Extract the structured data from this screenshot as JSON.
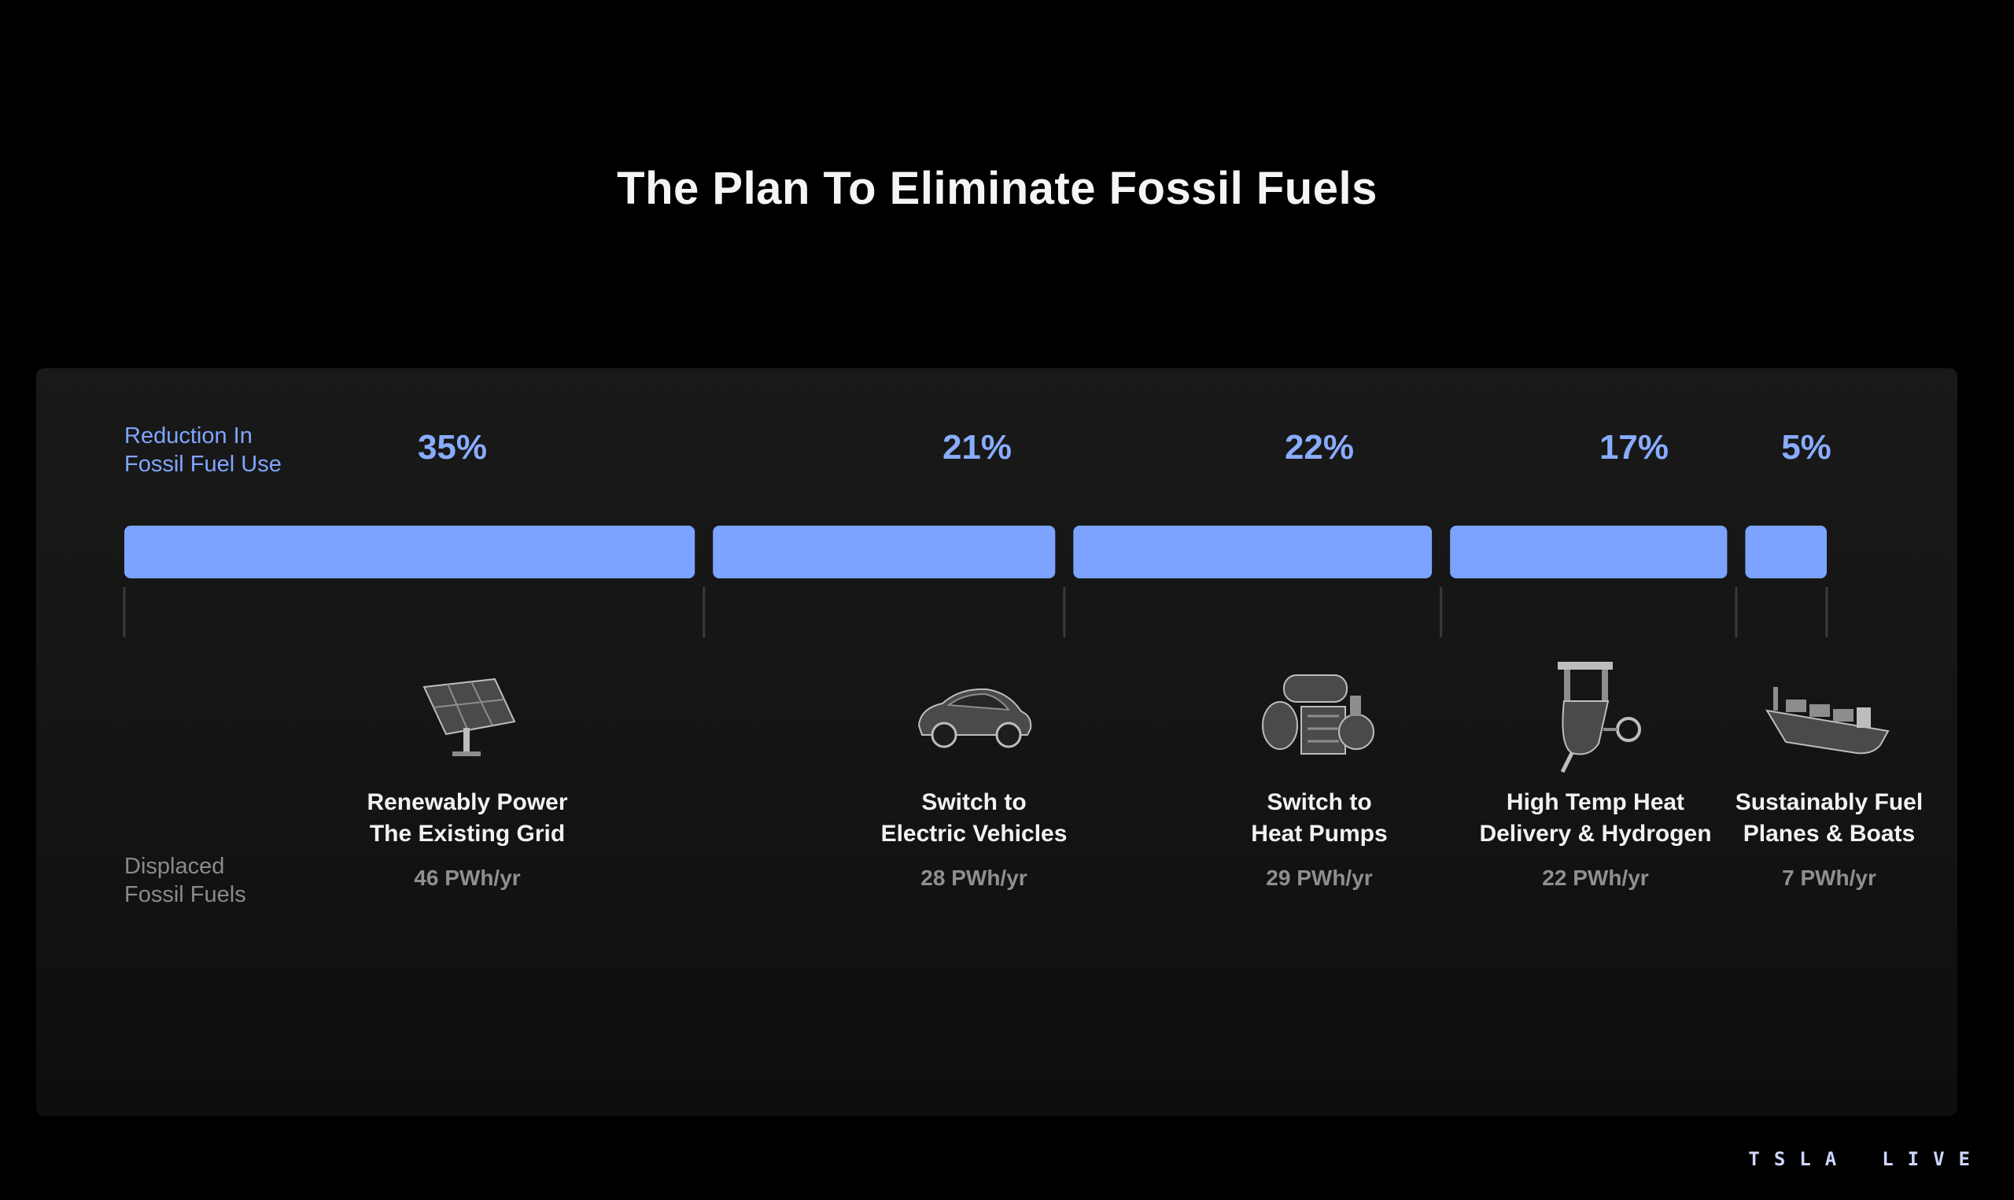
{
  "title": "The Plan To Eliminate Fossil Fuels",
  "labels": {
    "reduction_line1": "Reduction In",
    "reduction_line2": "Fossil Fuel Use",
    "displaced_line1": "Displaced",
    "displaced_line2": "Fossil Fuels"
  },
  "brand": {
    "part1": "TSLA",
    "part2": "LIVE"
  },
  "colors": {
    "bar": "#7ba3ff",
    "percent_text": "#89acff",
    "background": "#000000",
    "panel": "#161616"
  },
  "chart_data": {
    "type": "bar",
    "orientation": "horizontal-stacked",
    "title": "The Plan To Eliminate Fossil Fuels",
    "categories": [
      "Renewably Power The Existing Grid",
      "Switch to Electric Vehicles",
      "Switch to Heat Pumps",
      "High Temp Heat Delivery & Hydrogen",
      "Sustainably Fuel Planes & Boats"
    ],
    "series": [
      {
        "name": "Reduction In Fossil Fuel Use",
        "values": [
          35,
          21,
          22,
          17,
          5
        ],
        "unit": "%"
      },
      {
        "name": "Displaced Fossil Fuels",
        "values": [
          46,
          28,
          29,
          22,
          7
        ],
        "unit": "PWh/yr"
      }
    ],
    "items": [
      {
        "name_lines": [
          "Renewably Power",
          "The Existing Grid"
        ],
        "percent_label": "35%",
        "displaced_label": "46 PWh/yr",
        "icon": "solar-panel-icon"
      },
      {
        "name_lines": [
          "Switch to",
          "Electric Vehicles"
        ],
        "percent_label": "21%",
        "displaced_label": "28 PWh/yr",
        "icon": "electric-car-icon"
      },
      {
        "name_lines": [
          "Switch to",
          "Heat Pumps"
        ],
        "percent_label": "22%",
        "displaced_label": "29 PWh/yr",
        "icon": "heat-pump-icon"
      },
      {
        "name_lines": [
          "High Temp Heat",
          "Delivery & Hydrogen"
        ],
        "percent_label": "17%",
        "displaced_label": "22 PWh/yr",
        "icon": "industrial-heat-icon"
      },
      {
        "name_lines": [
          "Sustainably Fuel",
          "Planes & Boats"
        ],
        "percent_label": "5%",
        "displaced_label": "7 PWh/yr",
        "icon": "cargo-ship-icon"
      }
    ]
  }
}
